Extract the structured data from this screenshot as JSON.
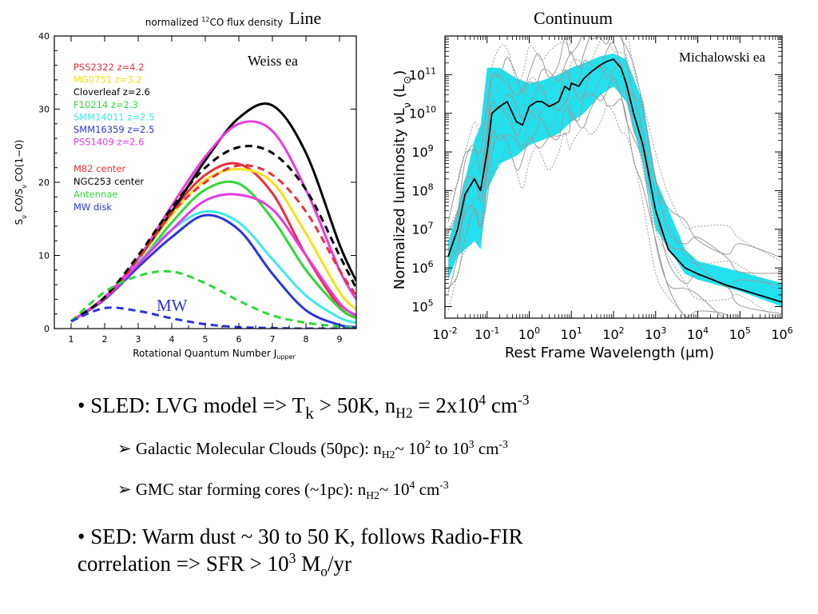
{
  "headings": {
    "line": "Line",
    "continuum": "Continuum"
  },
  "left_chart": {
    "title_pre": "normalized ",
    "title_sup": "12",
    "title_post": "CO flux density",
    "credit": "Weiss ea",
    "mw_label": "MW",
    "xlabel_main": "Rotational Quantum Number J",
    "xlabel_sub": "upper",
    "ylabel_text": "Sν CO/Sν CO(1−0)",
    "ylabel_parts": [
      {
        "t": "S",
        "s": ""
      },
      {
        "t": "ν",
        "s": "sub"
      },
      {
        "t": " CO/S",
        "s": ""
      },
      {
        "t": "ν",
        "s": "sub"
      },
      {
        "t": " CO(1−0)",
        "s": ""
      }
    ],
    "legend_group1": [
      {
        "label": "PSS2322  z=4.2",
        "color": "#e8303a"
      },
      {
        "label": "MG0751  z=3.2",
        "color": "#f2e21a"
      },
      {
        "label": "Cloverleaf  z=2.6",
        "color": "#000000"
      },
      {
        "label": "F10214  z=2.3",
        "color": "#2fd83a"
      },
      {
        "label": "SMM14011  z=2.5",
        "color": "#3de8ea"
      },
      {
        "label": "SMM16359  z=2.5",
        "color": "#2b35d8"
      },
      {
        "label": "PSS1409  z=2.6",
        "color": "#e83ae0"
      }
    ],
    "legend_group2": [
      {
        "label": "M82 center",
        "color": "#e8303a"
      },
      {
        "label": "NGC253 center",
        "color": "#000000"
      },
      {
        "label": "Antennae",
        "color": "#2fd83a"
      },
      {
        "label": "MW disk",
        "color": "#2b35d8"
      }
    ],
    "chart_data": {
      "type": "line",
      "title": "normalized 12CO flux density",
      "xlabel": "Rotational Quantum Number J_upper",
      "ylabel": "Sν CO/Sν CO(1−0)",
      "xlim": [
        0.5,
        9.5
      ],
      "ylim": [
        0,
        40
      ],
      "xticks": [
        1,
        2,
        3,
        4,
        5,
        6,
        7,
        8,
        9
      ],
      "yticks": [
        0,
        10,
        20,
        30,
        40
      ],
      "series": [
        {
          "name": "PSS2322  z=4.2",
          "color": "#e8303a",
          "style": "solid",
          "x": [
            1,
            2,
            3,
            4,
            5,
            6,
            7,
            8,
            9,
            9.5
          ],
          "y": [
            1,
            4.2,
            9.5,
            16,
            21,
            22.5,
            18.5,
            10,
            3,
            1.5
          ]
        },
        {
          "name": "MG0751  z=3.2",
          "color": "#f2e21a",
          "style": "solid",
          "x": [
            1,
            2,
            3,
            4,
            5,
            6,
            7,
            8,
            9,
            9.5
          ],
          "y": [
            1,
            4.2,
            9.3,
            15.5,
            20.3,
            21.8,
            20,
            13,
            5,
            2.6
          ]
        },
        {
          "name": "Cloverleaf  z=2.6",
          "color": "#000000",
          "style": "solid",
          "x": [
            1,
            2,
            3,
            4,
            5,
            6,
            7,
            8,
            9,
            9.5
          ],
          "y": [
            1,
            4.2,
            9.6,
            16,
            23,
            28.8,
            30.5,
            24,
            11.5,
            6.5
          ]
        },
        {
          "name": "F10214  z=2.3",
          "color": "#2fd83a",
          "style": "solid",
          "x": [
            1,
            2,
            3,
            4,
            5,
            6,
            7,
            8,
            9,
            9.5
          ],
          "y": [
            1,
            4,
            8.8,
            14.5,
            19,
            19.8,
            15,
            8,
            2.8,
            1.4
          ]
        },
        {
          "name": "SMM14011  z=2.5",
          "color": "#3de8ea",
          "style": "solid",
          "x": [
            1,
            2,
            3,
            4,
            5,
            6,
            7,
            8,
            9,
            9.5
          ],
          "y": [
            1,
            4,
            9,
            13.5,
            16,
            14.5,
            9.5,
            4.5,
            1.5,
            0.8
          ]
        },
        {
          "name": "SMM16359  z=2.5",
          "color": "#2b35d8",
          "style": "solid",
          "x": [
            1,
            2,
            3,
            4,
            5,
            6,
            7,
            8,
            9,
            9.5
          ],
          "y": [
            1,
            4,
            8.4,
            12.5,
            15.5,
            13.5,
            7.5,
            2.5,
            0.5,
            0.2
          ]
        },
        {
          "name": "PSS1409  z=2.6",
          "color": "#e83ae0",
          "style": "solid",
          "x": [
            1,
            2,
            3,
            4,
            5,
            6,
            7,
            8,
            9,
            9.5
          ],
          "y": [
            1,
            4.3,
            9.6,
            16.8,
            23.5,
            28,
            27,
            19,
            8,
            4
          ]
        },
        {
          "name": "PSS1409  z=2.6",
          "color": "#e83ae0",
          "style": "solid",
          "x": [
            1,
            2,
            3,
            4,
            5,
            6,
            7,
            8,
            9,
            9.5
          ],
          "y": [
            1,
            4.1,
            8.8,
            13.5,
            17.5,
            18.3,
            16.3,
            10,
            3.5,
            1.8
          ]
        },
        {
          "name": "M82 center",
          "color": "#e8303a",
          "style": "dashed",
          "x": [
            1,
            2,
            3,
            4,
            5,
            6,
            7,
            8,
            9,
            9.5
          ],
          "y": [
            1,
            4.2,
            9.5,
            15.8,
            20,
            22.3,
            21,
            16,
            8,
            4.5
          ]
        },
        {
          "name": "NGC253 center",
          "color": "#000000",
          "style": "dashed",
          "x": [
            1,
            2,
            3,
            4,
            5,
            6,
            7,
            8,
            9,
            9.5
          ],
          "y": [
            1,
            4.3,
            10,
            16.5,
            22,
            24.8,
            24,
            19,
            10,
            5.5
          ]
        },
        {
          "name": "Antennae",
          "color": "#2fd83a",
          "style": "dashed",
          "x": [
            1,
            2,
            3,
            4,
            5,
            6,
            7,
            8,
            9,
            9.5
          ],
          "y": [
            1,
            5,
            7.2,
            7.8,
            6.2,
            3.8,
            1.8,
            0.8,
            0.3,
            0.1
          ]
        },
        {
          "name": "MW disk",
          "color": "#2b35d8",
          "style": "dashed",
          "x": [
            1,
            2,
            3,
            4,
            5,
            6,
            7,
            8,
            9,
            9.5
          ],
          "y": [
            1,
            2.8,
            2.4,
            1.4,
            0.6,
            0.2,
            0.08,
            0,
            0,
            0
          ]
        }
      ]
    }
  },
  "right_chart": {
    "credit": "Michalowski ea",
    "xlabel": "Rest Frame Wavelength (μm)",
    "ylabel_text": "Normalized luminosity νLν (L⊙)",
    "ylabel_parts": [
      {
        "t": "Normalized luminosity νL",
        "s": ""
      },
      {
        "t": "ν",
        "s": "sub"
      },
      {
        "t": " (L",
        "s": ""
      },
      {
        "t": "⊙",
        "s": "sub"
      },
      {
        "t": ")",
        "s": ""
      }
    ],
    "xtick_labels": [
      {
        "base": "10",
        "exp": "-2"
      },
      {
        "base": "10",
        "exp": "-1"
      },
      {
        "base": "10",
        "exp": "0"
      },
      {
        "base": "10",
        "exp": "1"
      },
      {
        "base": "10",
        "exp": "2"
      },
      {
        "base": "10",
        "exp": "3"
      },
      {
        "base": "10",
        "exp": "4"
      },
      {
        "base": "10",
        "exp": "5"
      },
      {
        "base": "10",
        "exp": "6"
      }
    ],
    "ytick_labels": [
      {
        "base": "10",
        "exp": "5"
      },
      {
        "base": "10",
        "exp": "6"
      },
      {
        "base": "10",
        "exp": "7"
      },
      {
        "base": "10",
        "exp": "8"
      },
      {
        "base": "10",
        "exp": "9"
      },
      {
        "base": "10",
        "exp": "10"
      },
      {
        "base": "10",
        "exp": "11"
      }
    ],
    "chart_data": {
      "type": "line",
      "xlabel": "Rest Frame Wavelength (μm)",
      "ylabel": "Normalized luminosity νLν (L⊙)",
      "xscale": "log",
      "yscale": "log",
      "xlim": [
        0.01,
        1000000
      ],
      "ylim": [
        50000,
        1000000000000
      ],
      "band_color": "#22e0ee",
      "envelope_color": "#9a9a9a",
      "median": {
        "x": [
          0.012,
          0.02,
          0.03,
          0.05,
          0.07,
          0.1,
          0.13,
          0.2,
          0.3,
          0.5,
          0.7,
          1,
          1.5,
          2,
          3,
          5,
          7,
          9,
          10,
          15,
          20,
          30,
          50,
          70,
          100,
          150,
          200,
          300,
          500,
          1000,
          2000,
          5000,
          10000,
          50000,
          100000,
          1000000
        ],
        "y": [
          2000000,
          10000000,
          80000000,
          200000000,
          100000000,
          1000000000,
          10000000000,
          15000000000,
          20000000000,
          6000000000,
          5000000000,
          15000000000,
          20000000000,
          20000000000,
          15000000000,
          20000000000,
          50000000000,
          40000000000,
          60000000000,
          50000000000,
          80000000000,
          120000000000,
          180000000000,
          220000000000,
          250000000000,
          150000000000,
          60000000000,
          10000000000,
          1500000000,
          30000000,
          3000000,
          1000000,
          700000,
          350000,
          280000,
          130000
        ]
      },
      "band": {
        "x": [
          0.012,
          0.02,
          0.05,
          0.07,
          0.1,
          0.2,
          0.5,
          1,
          2,
          5,
          10,
          20,
          50,
          100,
          200,
          500,
          1000,
          5000,
          10000,
          100000,
          1000000
        ],
        "lo": [
          500000,
          2000000,
          5000000,
          3000000,
          100000000,
          500000000,
          800000000,
          1500000000,
          2000000000,
          3000000000,
          6000000000,
          10000000000,
          30000000000,
          50000000000,
          20000000000,
          500000000,
          10000000,
          700000,
          500000,
          250000,
          100000
        ],
        "hi": [
          5000000,
          30000000,
          2000000000,
          5000000000,
          150000000000,
          150000000000,
          80000000000,
          60000000000,
          70000000000,
          100000000000,
          150000000000,
          200000000000,
          300000000000,
          350000000000,
          250000000000,
          20000000000,
          200000000,
          3000000,
          1500000,
          800000,
          400000
        ]
      }
    }
  },
  "bullets": {
    "b1": {
      "pre": "• SLED: LVG model => T",
      "sub1": "k",
      "mid": " > 50K,  n",
      "sub2": "H2",
      "eq": " = 2x10",
      "sup1": "4",
      "unit": " cm",
      "sup2": "-3"
    },
    "s1": {
      "arrow": "➢",
      "pre": "Galactic Molecular Clouds (50pc): n",
      "sub": "H2",
      "mid": "~ 10",
      "sup1": "2",
      "to": " to 10",
      "sup2": "3",
      "unit": " cm",
      "sup3": "-3"
    },
    "s2": {
      "arrow": "➢",
      "pre": "GMC star forming cores (~1pc): n",
      "sub": "H2",
      "mid": "~ 10",
      "sup1": "4",
      "unit": " cm",
      "sup2": "-3"
    },
    "b2": {
      "line1": "• SED: Warm dust ~ 30 to 50 K, follows Radio-FIR",
      "line2_pre": "correlation => SFR > 10",
      "sup": "3",
      "mid": " M",
      "sub": "o",
      "post": "/yr"
    }
  }
}
